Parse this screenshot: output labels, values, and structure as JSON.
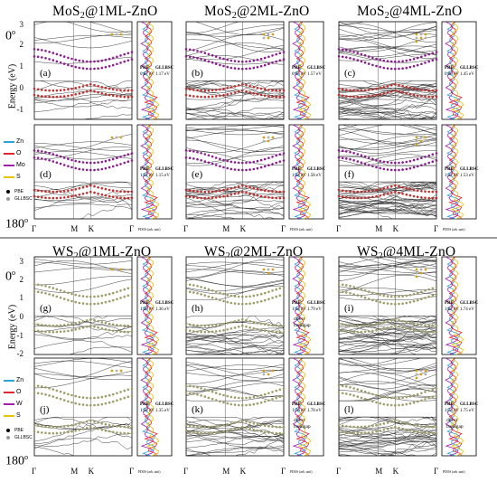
{
  "figure": {
    "rows": [
      {
        "columns": [
          {
            "title_main": "MoS",
            "title_sub": "2",
            "title_rest": "@1ML-ZnO"
          },
          {
            "title_main": "MoS",
            "title_sub": "2",
            "title_rest": "@2ML-ZnO"
          },
          {
            "title_main": "MoS",
            "title_sub": "2",
            "title_rest": "@4ML-ZnO"
          }
        ],
        "panels": [
          {
            "label": "(a)",
            "pbe": "0.87 eV",
            "gllbsc": "1.17 eV",
            "note": ""
          },
          {
            "label": "(b)",
            "pbe": "0.95 eV",
            "gllbsc": "1.57 eV",
            "note": ""
          },
          {
            "label": "(c)",
            "pbe": "0.90 eV",
            "gllbsc": "1.45 eV",
            "note": ""
          },
          {
            "label": "(d)",
            "pbe": "1.11 eV",
            "gllbsc": "1.15 eV",
            "note": ""
          },
          {
            "label": "(e)",
            "pbe": "1.34 eV",
            "gllbsc": "1.58 eV",
            "note": ""
          },
          {
            "label": "(f)",
            "pbe": "1.32 eV",
            "gllbsc": "1.53 eV",
            "note": ""
          }
        ],
        "legend": [
          {
            "name": "Zn",
            "color": "#2fa3d8"
          },
          {
            "name": "O",
            "color": "#e0262f"
          },
          {
            "name": "Mo",
            "color": "#a020a8"
          },
          {
            "name": "S",
            "color": "#e9c20a"
          }
        ]
      },
      {
        "columns": [
          {
            "title_main": "WS",
            "title_sub": "2",
            "title_rest": "@1ML-ZnO"
          },
          {
            "title_main": "WS",
            "title_sub": "2",
            "title_rest": "@2ML-ZnO"
          },
          {
            "title_main": "WS",
            "title_sub": "2",
            "title_rest": "@4ML-ZnO"
          }
        ],
        "panels": [
          {
            "label": "(g)",
            "pbe": "1.20 eV",
            "gllbsc": "1.36 eV",
            "note": ""
          },
          {
            "label": "(h)",
            "pbe": "1.34 eV",
            "gllbsc": "1.79 eV",
            "note": "direct bandgap"
          },
          {
            "label": "(i)",
            "pbe": "1.02 eV",
            "gllbsc": "1.74 eV",
            "note": ""
          },
          {
            "label": "(j)",
            "pbe": "1.32 eV",
            "gllbsc": "1.35 eV",
            "note": ""
          },
          {
            "label": "(k)",
            "pbe": "1.76 eV",
            "gllbsc": "1.78 eV",
            "note": "direct bandgap"
          },
          {
            "label": "(l)",
            "pbe": "1.73 eV",
            "gllbsc": "1.75 eV",
            "note": "direct bandgap"
          }
        ],
        "legend": [
          {
            "name": "Zn",
            "color": "#2fa3d8"
          },
          {
            "name": "O",
            "color": "#e0262f"
          },
          {
            "name": "W",
            "color": "#a020a8"
          },
          {
            "name": "S",
            "color": "#e9c20a"
          }
        ]
      }
    ],
    "angle_top": "0",
    "angle_bottom": "180",
    "degree_sign": "o",
    "y_axis_label": "Energy (eV)",
    "y_ticks_top": [
      "3",
      "2",
      "1",
      "0",
      "-1"
    ],
    "y_ticks_bottom": [
      "3",
      "2",
      "1",
      "0",
      "-1",
      "-2"
    ],
    "k_labels": [
      "Γ",
      "M",
      "K",
      "Γ"
    ],
    "pdos_label": "PDOS (arb. unit)",
    "gap_header_pbe": "PBE",
    "gap_header_gllbsc": "GLLBSC",
    "marker_legend": [
      {
        "name": "PBE",
        "color": "#000000"
      },
      {
        "name": "GLLBSC",
        "color": "#9a9a9a"
      }
    ],
    "colors": {
      "band_line": "#2a2a2a",
      "cb_markers": "#8a1c8f",
      "vb_markers": "#c0302f",
      "ws_markers": "#9d9d6a"
    }
  }
}
